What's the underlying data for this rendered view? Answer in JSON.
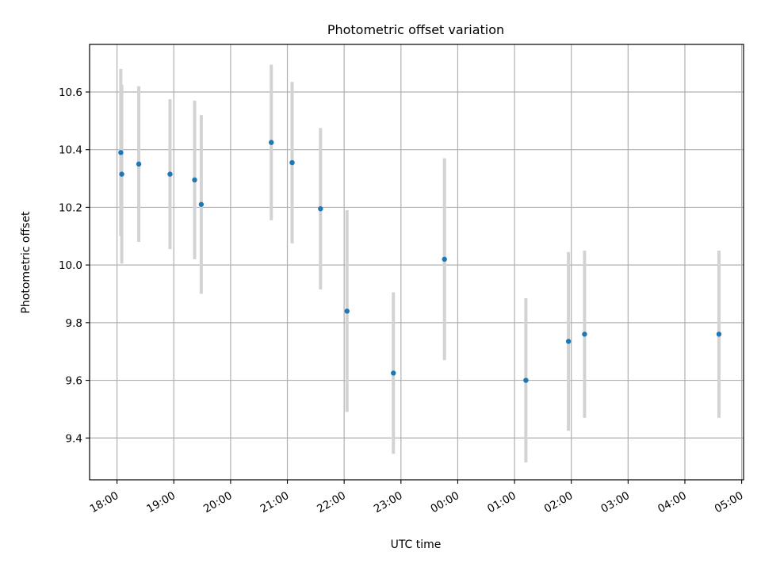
{
  "chart_data": {
    "type": "scatter",
    "title": "Photometric offset variation",
    "xlabel": "UTC time",
    "ylabel": "Photometric offset",
    "xlim": [
      "17:31",
      "05:02"
    ],
    "ylim": [
      9.255,
      10.765
    ],
    "x_ticks": [
      "18:00",
      "19:00",
      "20:00",
      "21:00",
      "22:00",
      "23:00",
      "00:00",
      "01:00",
      "02:00",
      "03:00",
      "04:00",
      "05:00"
    ],
    "y_ticks": [
      "9.4",
      "9.6",
      "9.8",
      "10.0",
      "10.2",
      "10.4",
      "10.6"
    ],
    "grid": true,
    "point_color": "#1f77b4",
    "errorbar_color": "#d3d3d3",
    "points": [
      {
        "x": "18:04",
        "y": 10.39,
        "err": 0.29
      },
      {
        "x": "18:05",
        "y": 10.315,
        "err": 0.31
      },
      {
        "x": "18:23",
        "y": 10.35,
        "err": 0.27
      },
      {
        "x": "18:56",
        "y": 10.315,
        "err": 0.26
      },
      {
        "x": "19:22",
        "y": 10.295,
        "err": 0.275
      },
      {
        "x": "19:29",
        "y": 10.21,
        "err": 0.31
      },
      {
        "x": "20:43",
        "y": 10.425,
        "err": 0.27
      },
      {
        "x": "21:05",
        "y": 10.355,
        "err": 0.28
      },
      {
        "x": "21:35",
        "y": 10.195,
        "err": 0.28
      },
      {
        "x": "22:03",
        "y": 9.84,
        "err": 0.35
      },
      {
        "x": "22:52",
        "y": 9.625,
        "err": 0.28
      },
      {
        "x": "23:46",
        "y": 10.02,
        "err": 0.35
      },
      {
        "x": "01:12",
        "y": 9.6,
        "err": 0.285
      },
      {
        "x": "01:57",
        "y": 9.735,
        "err": 0.31
      },
      {
        "x": "02:14",
        "y": 9.76,
        "err": 0.29
      },
      {
        "x": "04:36",
        "y": 9.76,
        "err": 0.29
      }
    ]
  }
}
